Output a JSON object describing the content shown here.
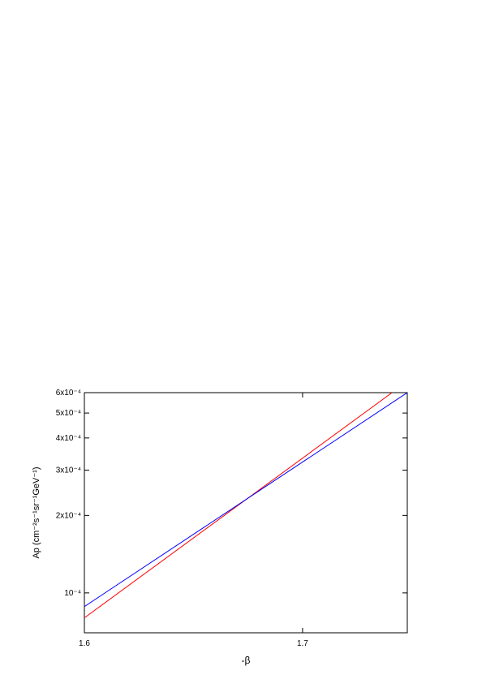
{
  "chart_data": {
    "type": "line",
    "x_label": "-β",
    "y_label": "Ap (cm⁻²s⁻¹sr⁻¹GeV⁻¹)",
    "xlim": [
      1.6,
      1.748
    ],
    "xticks": [
      1.6,
      1.7
    ],
    "ylim": [
      7e-05,
      0.0006
    ],
    "y_log": true,
    "yticks": [
      {
        "value": 0.0001,
        "label": "10⁻⁴"
      },
      {
        "value": 0.0002,
        "label": "2x10⁻⁴"
      },
      {
        "value": 0.0003,
        "label": "3x10⁻⁴"
      },
      {
        "value": 0.0004,
        "label": "4x10⁻⁴"
      },
      {
        "value": 0.0005,
        "label": "5x10⁻⁴"
      },
      {
        "value": 0.0006,
        "label": "6x10⁻⁴"
      }
    ],
    "series": [
      {
        "color": "#ff0000",
        "x": [
          1.6,
          1.741
        ],
        "values": [
          8e-05,
          0.0006
        ]
      },
      {
        "color": "#0000ff",
        "x": [
          1.6,
          1.748
        ],
        "values": [
          8.85e-05,
          0.0006
        ]
      }
    ]
  }
}
